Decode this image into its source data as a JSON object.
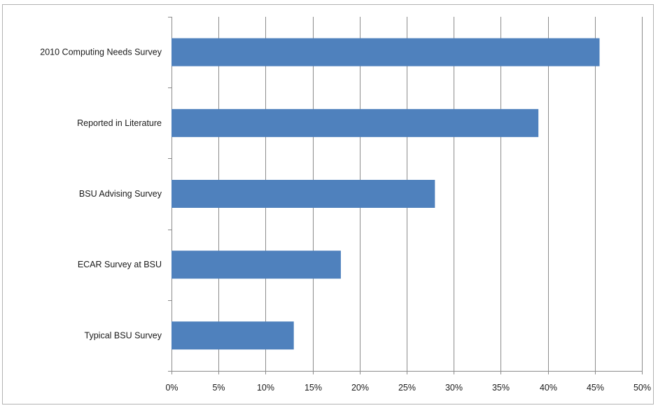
{
  "chart_data": {
    "type": "bar",
    "orientation": "horizontal",
    "categories": [
      "2010 Computing Needs Survey",
      "Reported in Literature",
      "BSU Advising Survey",
      "ECAR Survey at BSU",
      "Typical BSU Survey"
    ],
    "values": [
      0.455,
      0.39,
      0.28,
      0.18,
      0.13
    ],
    "xlim": [
      0,
      0.5
    ],
    "xticks": [
      0,
      0.05,
      0.1,
      0.15,
      0.2,
      0.25,
      0.3,
      0.35,
      0.4,
      0.45,
      0.5
    ],
    "xtick_labels": [
      "0%",
      "5%",
      "10%",
      "15%",
      "20%",
      "25%",
      "30%",
      "35%",
      "40%",
      "45%",
      "50%"
    ],
    "grid": "vertical",
    "legend": "none",
    "bar_color": "#4f81bd",
    "grid_color": "#8c8c8c"
  }
}
